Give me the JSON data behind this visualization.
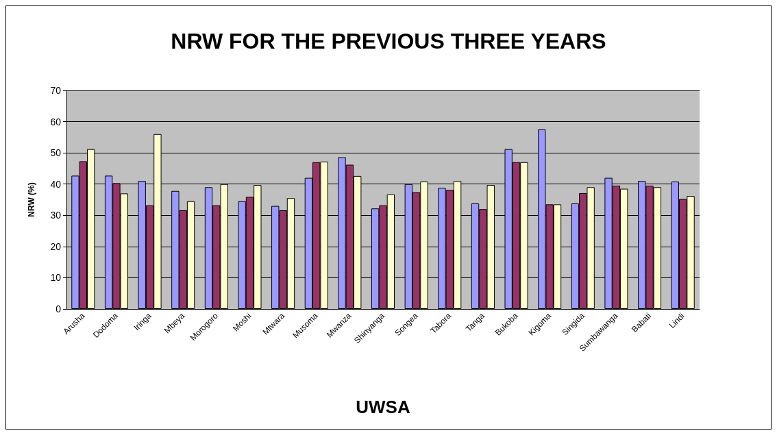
{
  "chart_data": {
    "type": "bar",
    "title": "NRW FOR THE PREVIOUS THREE YEARS",
    "xlabel": "UWSA",
    "ylabel": "NRW (%)",
    "categories": [
      "Arusha",
      "Dodoma",
      "Iringa",
      "Mbeya",
      "Morogoro",
      "Moshi",
      "Mtwara",
      "Musoma",
      "Mwanza",
      "Shinyanga",
      "Songea",
      "Tabora",
      "Tanga",
      "Bukoba",
      "Kigoma",
      "Singida",
      "Sumbawanga",
      "Babati",
      "Lindi"
    ],
    "series": [
      {
        "color": "#9999ff",
        "values": [
          42.7,
          42.7,
          41,
          37.8,
          39,
          34.5,
          33,
          42,
          48.6,
          32.2,
          40,
          38.8,
          33.8,
          51.2,
          57.5,
          33.8,
          42,
          41,
          40.8
        ]
      },
      {
        "color": "#993366",
        "values": [
          47.3,
          40.3,
          33.2,
          31.6,
          33.2,
          35.9,
          31.6,
          47,
          46.2,
          33.2,
          37.4,
          38.1,
          32,
          47,
          33.5,
          37.1,
          39.5,
          39.5,
          35.2
        ]
      },
      {
        "color": "#ffffcc",
        "values": [
          51.2,
          37,
          56,
          34.5,
          40,
          39.7,
          35.5,
          47.2,
          42.6,
          36.7,
          40.8,
          41,
          39.7,
          47,
          33.5,
          39,
          38.5,
          39,
          36.2
        ]
      }
    ],
    "ylim": [
      0,
      70
    ],
    "yticks": [
      0,
      10,
      20,
      30,
      40,
      50,
      60,
      70
    ],
    "grid": "y"
  }
}
